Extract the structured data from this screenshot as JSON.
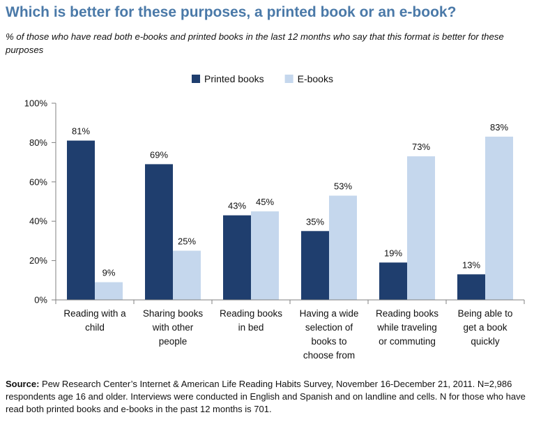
{
  "title": "Which is better for these purposes, a printed book or an e-book?",
  "subtitle": "% of those who have read both e-books and printed books in the last 12 months who say that this format is better for these purposes",
  "source": {
    "label": "Source:",
    "text": "Pew Research Center’s Internet & American Life Reading Habits Survey, November 16-December 21, 2011. N=2,986 respondents age 16 and older. Interviews were conducted in English and Spanish and on landline and cells. N for those who have read both printed books and e-books in the past 12 months is 701."
  },
  "colors": {
    "printed": "#1f3e6e",
    "ebooks": "#c5d7ed",
    "title": "#4a79a8"
  },
  "chart_data": {
    "type": "bar",
    "categories": [
      [
        "Reading with a",
        "child"
      ],
      [
        "Sharing books",
        "with other",
        "people"
      ],
      [
        "Reading books",
        "in bed"
      ],
      [
        "Having a wide",
        "selection of",
        "books to",
        "choose from"
      ],
      [
        "Reading books",
        "while traveling",
        "or commuting"
      ],
      [
        "Being able to",
        "get a book",
        "quickly"
      ]
    ],
    "series": [
      {
        "name": "Printed books",
        "values": [
          81,
          69,
          43,
          35,
          19,
          13
        ],
        "labels": [
          "81%",
          "69%",
          "43%",
          "35%",
          "19%",
          "13%"
        ]
      },
      {
        "name": "E-books",
        "values": [
          9,
          25,
          45,
          53,
          73,
          83
        ],
        "labels": [
          "9%",
          "25%",
          "45%",
          "53%",
          "73%",
          "83%"
        ]
      }
    ],
    "ylim": [
      0,
      100
    ],
    "yticks": [
      0,
      20,
      40,
      60,
      80,
      100
    ],
    "ytick_labels": [
      "0%",
      "20%",
      "40%",
      "60%",
      "80%",
      "100%"
    ],
    "legend_position": "top-center",
    "grid": false
  }
}
